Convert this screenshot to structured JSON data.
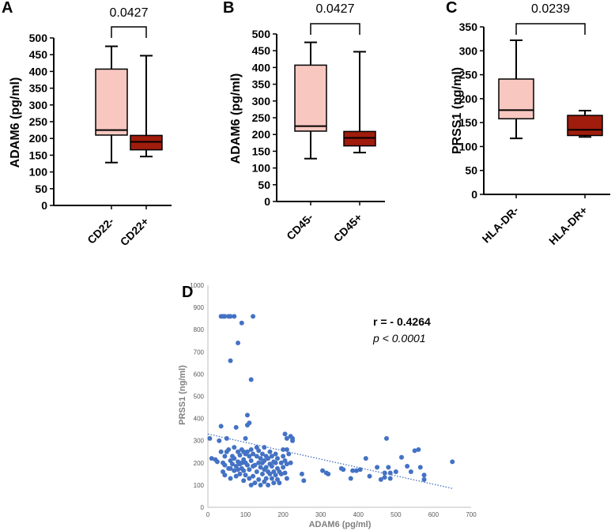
{
  "figure_labels": {
    "a": "A",
    "b": "B",
    "c": "C",
    "d": "D"
  },
  "colors": {
    "box_light": "#f8c7c0",
    "box_dark": "#a01c0c",
    "scatter_point": "#4472c4",
    "trend": "#4472c4"
  },
  "chart_data": [
    {
      "id": "A",
      "type": "box",
      "ylabel": "ADAM6 (pg/ml)",
      "ylim": [
        0,
        500
      ],
      "yticks": [
        "0",
        "50",
        "100",
        "150",
        "200",
        "250",
        "300",
        "350",
        "400",
        "450",
        "500"
      ],
      "categories": [
        "CD22-",
        "CD22+"
      ],
      "boxes": [
        {
          "min": 128,
          "q1": 210,
          "median": 225,
          "q3": 407,
          "max": 475,
          "fill": "light"
        },
        {
          "min": 146,
          "q1": 166,
          "median": 190,
          "q3": 209,
          "max": 447,
          "fill": "dark"
        }
      ],
      "p_value": "0.0427"
    },
    {
      "id": "B",
      "type": "box",
      "ylabel": "ADAM6 (pg/ml)",
      "ylim": [
        0,
        500
      ],
      "yticks": [
        "0",
        "50",
        "100",
        "150",
        "200",
        "250",
        "300",
        "350",
        "400",
        "450",
        "500"
      ],
      "categories": [
        "CD45-",
        "CD45+"
      ],
      "boxes": [
        {
          "min": 128,
          "q1": 210,
          "median": 225,
          "q3": 407,
          "max": 475,
          "fill": "light"
        },
        {
          "min": 146,
          "q1": 166,
          "median": 190,
          "q3": 209,
          "max": 447,
          "fill": "dark"
        }
      ],
      "p_value": "0.0427"
    },
    {
      "id": "C",
      "type": "box",
      "ylabel": "PRSS1 (ng/ml)",
      "ylim": [
        0,
        350
      ],
      "yticks": [
        "0",
        "50",
        "100",
        "150",
        "200",
        "250",
        "300",
        "350"
      ],
      "categories": [
        "HLA-DR-",
        "HLA-DR+"
      ],
      "boxes": [
        {
          "min": 117,
          "q1": 158,
          "median": 176,
          "q3": 241,
          "max": 322,
          "fill": "light"
        },
        {
          "min": 120,
          "q1": 123,
          "median": 135,
          "q3": 165,
          "max": 175,
          "fill": "dark"
        }
      ],
      "p_value": "0.0239"
    },
    {
      "id": "D",
      "type": "scatter",
      "xlabel": "ADAM6 (pg/ml)",
      "ylabel": "PRSS1 (ng/ml)",
      "xlim": [
        0,
        700
      ],
      "ylim": [
        0,
        1000
      ],
      "xticks": [
        "0",
        "100",
        "200",
        "300",
        "400",
        "500",
        "600",
        "700"
      ],
      "yticks": [
        "0",
        "100",
        "200",
        "300",
        "400",
        "500",
        "600",
        "700",
        "800",
        "900",
        "1000"
      ],
      "correlation": "r = - 0.4264",
      "p_text": "p < 0.0001",
      "trendline": {
        "x": [
          0,
          650
        ],
        "y": [
          330,
          85
        ]
      },
      "points": [
        [
          5,
          310
        ],
        [
          10,
          220
        ],
        [
          20,
          215
        ],
        [
          25,
          205
        ],
        [
          30,
          300
        ],
        [
          35,
          250
        ],
        [
          35,
          365
        ],
        [
          35,
          860
        ],
        [
          40,
          860
        ],
        [
          40,
          200
        ],
        [
          40,
          160
        ],
        [
          45,
          860
        ],
        [
          45,
          230
        ],
        [
          45,
          190
        ],
        [
          45,
          145
        ],
        [
          50,
          310
        ],
        [
          50,
          250
        ],
        [
          55,
          860
        ],
        [
          55,
          260
        ],
        [
          55,
          175
        ],
        [
          60,
          660
        ],
        [
          60,
          860
        ],
        [
          60,
          210
        ],
        [
          60,
          175
        ],
        [
          60,
          130
        ],
        [
          65,
          230
        ],
        [
          65,
          195
        ],
        [
          70,
          860
        ],
        [
          70,
          270
        ],
        [
          70,
          220
        ],
        [
          70,
          165
        ],
        [
          75,
          360
        ],
        [
          75,
          185
        ],
        [
          75,
          140
        ],
        [
          80,
          740
        ],
        [
          80,
          250
        ],
        [
          80,
          205
        ],
        [
          80,
          170
        ],
        [
          85,
          235
        ],
        [
          85,
          195
        ],
        [
          85,
          150
        ],
        [
          90,
          830
        ],
        [
          90,
          260
        ],
        [
          90,
          200
        ],
        [
          90,
          175
        ],
        [
          95,
          250
        ],
        [
          95,
          215
        ],
        [
          95,
          165
        ],
        [
          95,
          120
        ],
        [
          100,
          310
        ],
        [
          100,
          240
        ],
        [
          100,
          200
        ],
        [
          100,
          145
        ],
        [
          105,
          415
        ],
        [
          105,
          370
        ],
        [
          105,
          250
        ],
        [
          105,
          190
        ],
        [
          110,
          380
        ],
        [
          110,
          230
        ],
        [
          110,
          170
        ],
        [
          110,
          130
        ],
        [
          115,
          575
        ],
        [
          115,
          260
        ],
        [
          115,
          210
        ],
        [
          115,
          100
        ],
        [
          120,
          860
        ],
        [
          120,
          240
        ],
        [
          120,
          185
        ],
        [
          120,
          140
        ],
        [
          125,
          190
        ],
        [
          125,
          110
        ],
        [
          130,
          270
        ],
        [
          130,
          230
        ],
        [
          130,
          160
        ],
        [
          135,
          255
        ],
        [
          135,
          200
        ],
        [
          135,
          125
        ],
        [
          140,
          220
        ],
        [
          140,
          180
        ],
        [
          140,
          100
        ],
        [
          145,
          240
        ],
        [
          145,
          200
        ],
        [
          145,
          150
        ],
        [
          150,
          270
        ],
        [
          150,
          210
        ],
        [
          150,
          170
        ],
        [
          150,
          115
        ],
        [
          155,
          230
        ],
        [
          155,
          180
        ],
        [
          155,
          130
        ],
        [
          160,
          220
        ],
        [
          160,
          160
        ],
        [
          160,
          100
        ],
        [
          165,
          250
        ],
        [
          165,
          195
        ],
        [
          165,
          150
        ],
        [
          170,
          230
        ],
        [
          170,
          185
        ],
        [
          170,
          130
        ],
        [
          175,
          205
        ],
        [
          175,
          160
        ],
        [
          175,
          110
        ],
        [
          180,
          240
        ],
        [
          180,
          200
        ],
        [
          180,
          145
        ],
        [
          185,
          220
        ],
        [
          185,
          175
        ],
        [
          185,
          125
        ],
        [
          190,
          160
        ],
        [
          190,
          110
        ],
        [
          195,
          200
        ],
        [
          195,
          150
        ],
        [
          200,
          260
        ],
        [
          200,
          230
        ],
        [
          200,
          180
        ],
        [
          205,
          330
        ],
        [
          205,
          210
        ],
        [
          205,
          155
        ],
        [
          210,
          310
        ],
        [
          210,
          260
        ],
        [
          210,
          195
        ],
        [
          210,
          130
        ],
        [
          215,
          240
        ],
        [
          220,
          320
        ],
        [
          220,
          200
        ],
        [
          225,
          310
        ],
        [
          225,
          300
        ],
        [
          250,
          150
        ],
        [
          255,
          120
        ],
        [
          305,
          165
        ],
        [
          315,
          155
        ],
        [
          320,
          150
        ],
        [
          355,
          175
        ],
        [
          360,
          170
        ],
        [
          380,
          130
        ],
        [
          385,
          165
        ],
        [
          395,
          165
        ],
        [
          405,
          170
        ],
        [
          420,
          220
        ],
        [
          430,
          140
        ],
        [
          450,
          180
        ],
        [
          460,
          125
        ],
        [
          470,
          155
        ],
        [
          470,
          135
        ],
        [
          475,
          310
        ],
        [
          480,
          180
        ],
        [
          485,
          155
        ],
        [
          485,
          130
        ],
        [
          500,
          160
        ],
        [
          515,
          225
        ],
        [
          530,
          185
        ],
        [
          540,
          160
        ],
        [
          550,
          255
        ],
        [
          560,
          260
        ],
        [
          565,
          180
        ],
        [
          575,
          145
        ],
        [
          575,
          125
        ],
        [
          650,
          205
        ]
      ]
    }
  ]
}
